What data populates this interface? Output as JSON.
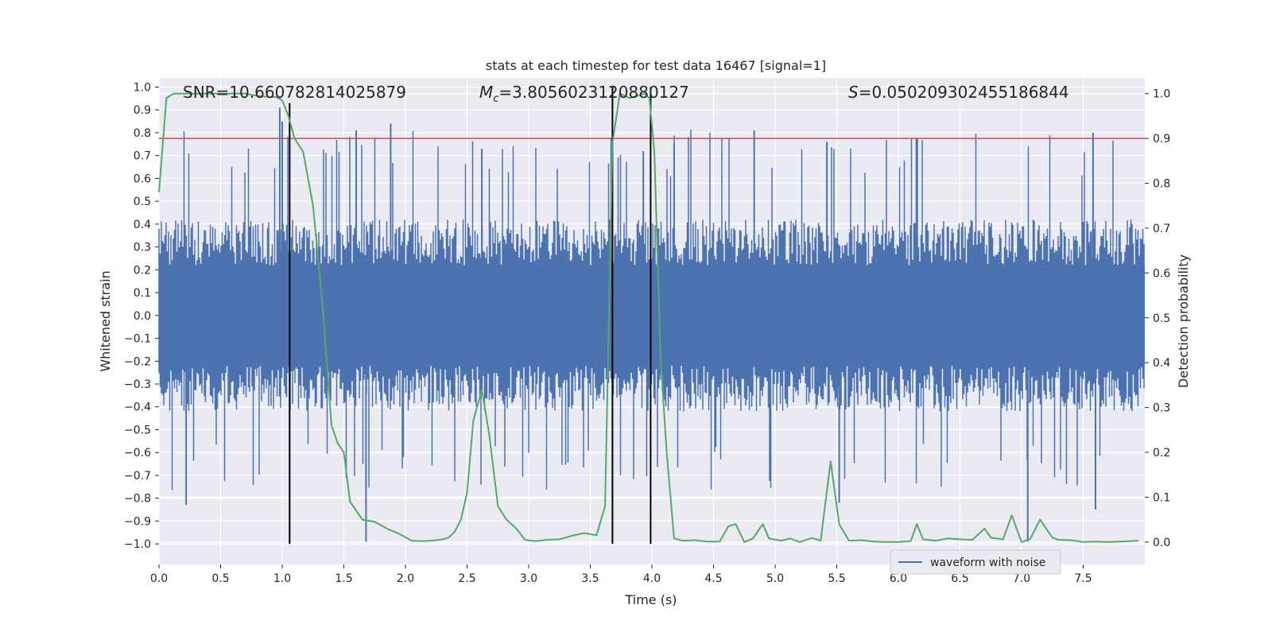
{
  "chart_data": {
    "type": "line",
    "title": "stats at each timestep for test data 16467 [signal=1]",
    "xlabel": "Time (s)",
    "ylabel_left": "Whitened strain",
    "ylabel_right": "Detection probability",
    "xlim": [
      0.0,
      8.0
    ],
    "ylim_left": [
      -1.09,
      1.04
    ],
    "ylim_right": [
      -0.05,
      1.035
    ],
    "x_ticks": [
      "0.0",
      "0.5",
      "1.0",
      "1.5",
      "2.0",
      "2.5",
      "3.0",
      "3.5",
      "4.0",
      "4.5",
      "5.0",
      "5.5",
      "6.0",
      "6.5",
      "7.0",
      "7.5"
    ],
    "y_left_ticks": [
      "1.0",
      "0.9",
      "0.8",
      "0.7",
      "0.6",
      "0.5",
      "0.4",
      "0.3",
      "0.2",
      "0.1",
      "0.0",
      "−0.1",
      "−0.2",
      "−0.3",
      "−0.4",
      "−0.5",
      "−0.6",
      "−0.7",
      "−0.8",
      "−0.9",
      "−1.0"
    ],
    "y_right_ticks": [
      "1.0",
      "0.9",
      "0.8",
      "0.7",
      "0.6",
      "0.5",
      "0.4",
      "0.3",
      "0.2",
      "0.1",
      "0.0"
    ],
    "grid": true,
    "annotations": {
      "snr": "SNR=10.660782814025879",
      "mc_symbol": "M",
      "mc_sub": "c",
      "mc_value": "=3.8056023120880127",
      "s_symbol": "S",
      "s_value": "=0.050209302455186844"
    },
    "threshold": {
      "axis": "right",
      "value": 0.9,
      "color": "#c44e52"
    },
    "vertical_lines": [
      {
        "x": 1.06,
        "y_from": -1.0,
        "y_to": 0.93
      },
      {
        "x": 3.68,
        "y_from": -1.0,
        "y_to": 1.0
      },
      {
        "x": 3.99,
        "y_from": -1.0,
        "y_to": 1.0
      }
    ],
    "series": [
      {
        "name": "waveform with noise",
        "axis": "left",
        "color": "#4c72b0",
        "envelope": {
          "typical_max": 0.4,
          "typical_min": -0.4,
          "extreme_max": 0.91,
          "extreme_min": -1.0
        },
        "peaks": [
          {
            "x": 0.22,
            "y": -0.83
          },
          {
            "x": 0.98,
            "y": 0.91
          },
          {
            "x": 1.0,
            "y": 0.85
          },
          {
            "x": 1.6,
            "y": 0.81
          },
          {
            "x": 1.68,
            "y": -0.99
          },
          {
            "x": 1.88,
            "y": 0.84
          },
          {
            "x": 2.62,
            "y": 0.73
          },
          {
            "x": 3.93,
            "y": 0.72
          },
          {
            "x": 4.18,
            "y": 0.75
          },
          {
            "x": 4.83,
            "y": 0.81
          },
          {
            "x": 5.42,
            "y": 0.76
          },
          {
            "x": 5.52,
            "y": -0.82
          },
          {
            "x": 7.05,
            "y": -0.99
          },
          {
            "x": 7.58,
            "y": 0.8
          },
          {
            "x": 7.6,
            "y": -0.85
          }
        ]
      },
      {
        "name": "detection probability",
        "axis": "right",
        "color": "#55a868",
        "x": [
          0.0,
          0.06,
          0.12,
          0.2,
          0.3,
          0.4,
          0.5,
          0.6,
          0.7,
          0.8,
          0.9,
          0.95,
          1.0,
          1.05,
          1.1,
          1.17,
          1.25,
          1.33,
          1.4,
          1.45,
          1.5,
          1.55,
          1.65,
          1.75,
          1.85,
          1.95,
          2.05,
          2.15,
          2.25,
          2.3,
          2.35,
          2.4,
          2.45,
          2.5,
          2.55,
          2.62,
          2.68,
          2.75,
          2.82,
          2.9,
          2.97,
          3.05,
          3.15,
          3.25,
          3.35,
          3.45,
          3.55,
          3.62,
          3.68,
          3.74,
          3.82,
          3.88,
          3.94,
          3.98,
          4.02,
          4.07,
          4.12,
          4.18,
          4.25,
          4.35,
          4.45,
          4.55,
          4.62,
          4.68,
          4.75,
          4.82,
          4.9,
          4.95,
          5.05,
          5.12,
          5.2,
          5.3,
          5.37,
          5.45,
          5.52,
          5.6,
          5.7,
          5.8,
          5.9,
          6.0,
          6.1,
          6.15,
          6.2,
          6.3,
          6.4,
          6.5,
          6.6,
          6.7,
          6.75,
          6.85,
          6.92,
          7.0,
          7.07,
          7.15,
          7.2,
          7.25,
          7.3,
          7.4,
          7.5,
          7.6,
          7.7,
          7.8,
          7.95
        ],
        "y": [
          0.78,
          0.99,
          1.0,
          1.0,
          1.0,
          1.0,
          1.0,
          1.0,
          1.0,
          0.995,
          0.992,
          0.993,
          0.985,
          0.95,
          0.9,
          0.87,
          0.75,
          0.52,
          0.26,
          0.22,
          0.2,
          0.09,
          0.05,
          0.045,
          0.03,
          0.018,
          0.003,
          0.002,
          0.004,
          0.006,
          0.01,
          0.023,
          0.05,
          0.11,
          0.27,
          0.34,
          0.24,
          0.08,
          0.05,
          0.03,
          0.005,
          0.002,
          0.005,
          0.006,
          0.014,
          0.02,
          0.015,
          0.08,
          0.89,
          1.0,
          0.99,
          0.995,
          1.0,
          0.99,
          0.87,
          0.41,
          0.2,
          0.008,
          0.003,
          0.004,
          0.001,
          0.001,
          0.035,
          0.04,
          0.0,
          0.008,
          0.04,
          0.008,
          0.003,
          0.008,
          0.0,
          0.009,
          0.003,
          0.18,
          0.04,
          0.003,
          0.004,
          0.001,
          0.0,
          0.0,
          0.002,
          0.04,
          0.006,
          0.003,
          0.008,
          0.006,
          0.005,
          0.03,
          0.01,
          0.006,
          0.06,
          0.0,
          0.007,
          0.05,
          0.03,
          0.01,
          0.005,
          0.004,
          0.0,
          0.001,
          0.0,
          0.001,
          0.003
        ]
      }
    ],
    "legend": {
      "label": "waveform with noise",
      "position": "bottom-right"
    }
  }
}
